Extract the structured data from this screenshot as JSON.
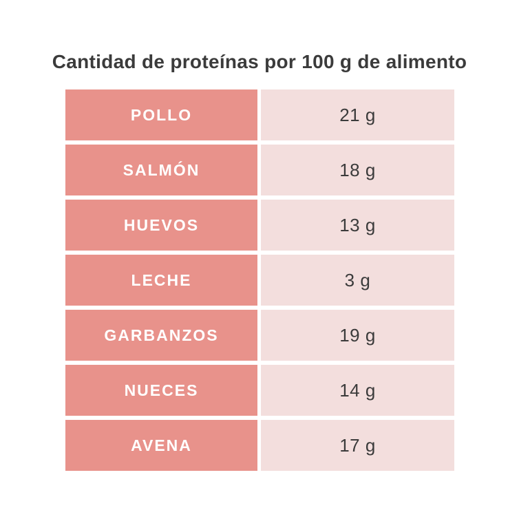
{
  "title": "Cantidad de proteínas por 100 g de alimento",
  "chart_data": {
    "type": "table",
    "title": "Cantidad de proteínas por 100 g de alimento",
    "categories": [
      "POLLO",
      "SALMÓN",
      "HUEVOS",
      "LECHE",
      "GARBANZOS",
      "NUECES",
      "AVENA"
    ],
    "values": [
      21,
      18,
      13,
      3,
      19,
      14,
      17
    ],
    "unit": "g",
    "layout": "two-column table, food name left, grams right, white gaps between cells"
  },
  "table": {
    "rows": [
      {
        "food": "POLLO",
        "value": "21 g"
      },
      {
        "food": "SALMÓN",
        "value": "18 g"
      },
      {
        "food": "HUEVOS",
        "value": "13 g"
      },
      {
        "food": "LECHE",
        "value": "3 g"
      },
      {
        "food": "GARBANZOS",
        "value": "19 g"
      },
      {
        "food": "NUECES",
        "value": "14 g"
      },
      {
        "food": "AVENA",
        "value": "17 g"
      }
    ]
  },
  "colors": {
    "food_cell_bg": "#e8928b",
    "value_cell_bg": "#f3dedd",
    "food_text": "#ffffff",
    "value_text": "#3b3b3b",
    "title_text": "#3b3b3b",
    "page_bg": "#ffffff"
  }
}
